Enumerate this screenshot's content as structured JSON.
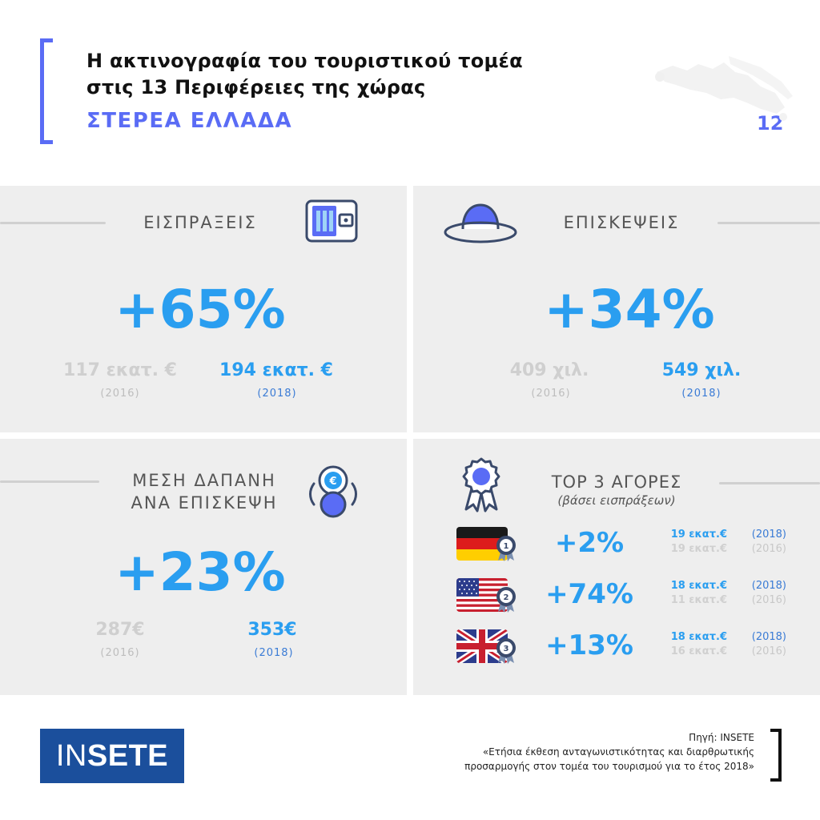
{
  "header": {
    "title_line1": "Η ακτινογραφία του τουριστικού τομέα",
    "title_line2": "στις 13 Περιφέρειες της χώρας",
    "region": "ΣΤΕΡΕΑ ΕΛΛΑΔΑ",
    "page_number": "12"
  },
  "receipts": {
    "title": "ΕΙΣΠΡΑΞΕΙΣ",
    "icon": "wallet-icon",
    "change": "+65%",
    "old_value": "117 εκατ. €",
    "old_year": "(2016)",
    "new_value": "194 εκατ. €",
    "new_year": "(2018)"
  },
  "visits": {
    "title": "ΕΠΙΣΚΕΨΕΙΣ",
    "icon": "hat-icon",
    "change": "+34%",
    "old_value": "409 χιλ.",
    "old_year": "(2016)",
    "new_value": "549 χιλ.",
    "new_year": "(2018)"
  },
  "spend": {
    "title_line1": "ΜΕΣΗ ΔΑΠΑΝΗ",
    "title_line2": "ΑΝΑ ΕΠΙΣΚΕΨΗ",
    "icon": "coins-icon",
    "change": "+23%",
    "old_value": "287€",
    "old_year": "(2016)",
    "new_value": "353€",
    "new_year": "(2018)"
  },
  "markets": {
    "title": "TOP 3 ΑΓΟΡΕΣ",
    "subtitle": "(βάσει εισπράξεων)",
    "icon": "award-ribbon-icon",
    "rows": [
      {
        "flag": "germany-flag",
        "rank": "1",
        "change": "+2%",
        "value_2018": "19 εκατ.€",
        "year_2018": "(2018)",
        "value_2016": "19 εκατ.€",
        "year_2016": "(2016)"
      },
      {
        "flag": "usa-flag",
        "rank": "2",
        "change": "+74%",
        "value_2018": "18 εκατ.€",
        "year_2018": "(2018)",
        "value_2016": "11 εκατ.€",
        "year_2016": "(2016)"
      },
      {
        "flag": "uk-flag",
        "rank": "3",
        "change": "+13%",
        "value_2018": "18 εκατ.€",
        "year_2018": "(2018)",
        "value_2016": "16 εκατ.€",
        "year_2016": "(2016)"
      }
    ]
  },
  "colors": {
    "accent": "#5a6cf5",
    "value_blue": "#2a9ef0",
    "panel_bg": "#eeeeee",
    "logo_bg": "#1b4f9c"
  },
  "footer": {
    "logo_part1": "IN",
    "logo_part2": "SETE",
    "source_line1": "Πηγή: INSETE",
    "source_line2": "«Ετήσια έκθεση ανταγωνιστικότητας και διαρθρωτικής",
    "source_line3": "προσαρμογής στον τομέα του τουρισμού για το έτος 2018»"
  }
}
